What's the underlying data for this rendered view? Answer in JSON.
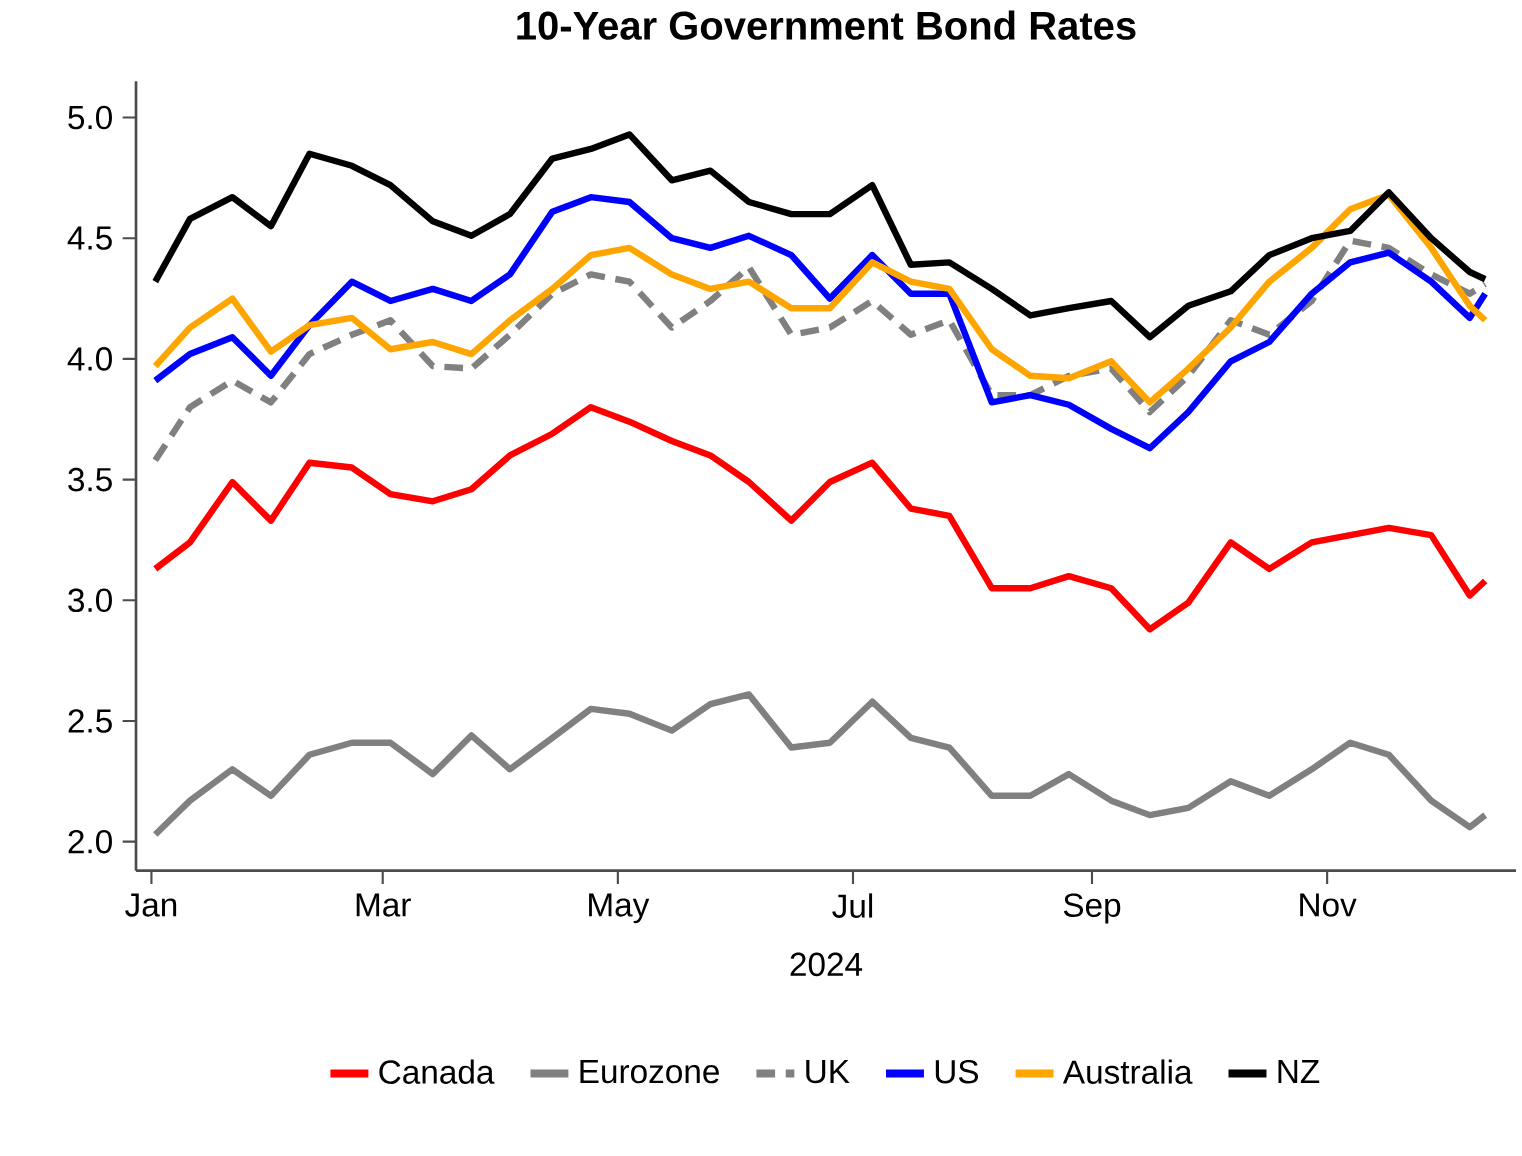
{
  "chart_data": {
    "type": "line",
    "title": "10-Year Government Bond Rates",
    "xlabel": "2024",
    "x": [
      "2024-01-02",
      "2024-01-11",
      "2024-01-22",
      "2024-02-01",
      "2024-02-11",
      "2024-02-22",
      "2024-03-03",
      "2024-03-14",
      "2024-03-24",
      "2024-04-03",
      "2024-04-14",
      "2024-04-24",
      "2024-05-04",
      "2024-05-15",
      "2024-05-25",
      "2024-06-04",
      "2024-06-15",
      "2024-06-25",
      "2024-07-06",
      "2024-07-16",
      "2024-07-26",
      "2024-08-06",
      "2024-08-16",
      "2024-08-26",
      "2024-09-06",
      "2024-09-16",
      "2024-09-26",
      "2024-10-07",
      "2024-10-17",
      "2024-10-28",
      "2024-11-07",
      "2024-11-17",
      "2024-11-28",
      "2024-12-08",
      "2024-12-12"
    ],
    "series": [
      {
        "name": "Canada",
        "color": "#ff0000",
        "line_style": "solid",
        "values": [
          3.13,
          3.24,
          3.49,
          3.33,
          3.57,
          3.55,
          3.44,
          3.41,
          3.46,
          3.6,
          3.69,
          3.8,
          3.74,
          3.66,
          3.6,
          3.49,
          3.33,
          3.49,
          3.57,
          3.38,
          3.35,
          3.05,
          3.05,
          3.1,
          3.05,
          2.88,
          2.99,
          3.24,
          3.13,
          3.24,
          3.27,
          3.3,
          3.27,
          3.02,
          3.08
        ]
      },
      {
        "name": "Eurozone",
        "color": "#808080",
        "line_style": "solid",
        "values": [
          2.03,
          2.17,
          2.3,
          2.19,
          2.36,
          2.41,
          2.41,
          2.28,
          2.44,
          2.3,
          2.43,
          2.55,
          2.53,
          2.46,
          2.57,
          2.61,
          2.39,
          2.41,
          2.58,
          2.43,
          2.39,
          2.19,
          2.19,
          2.28,
          2.17,
          2.11,
          2.14,
          2.25,
          2.19,
          2.3,
          2.41,
          2.36,
          2.17,
          2.06,
          2.11
        ]
      },
      {
        "name": "UK",
        "color": "#808080",
        "line_style": "dashed",
        "values": [
          3.58,
          3.8,
          3.91,
          3.82,
          4.02,
          4.1,
          4.16,
          3.97,
          3.96,
          4.1,
          4.27,
          4.35,
          4.32,
          4.13,
          4.24,
          4.38,
          4.1,
          4.13,
          4.24,
          4.1,
          4.16,
          3.85,
          3.85,
          3.93,
          3.96,
          3.78,
          3.93,
          4.16,
          4.1,
          4.24,
          4.49,
          4.46,
          4.35,
          4.27,
          4.31
        ]
      },
      {
        "name": "US",
        "color": "#0000ff",
        "line_style": "solid",
        "values": [
          3.91,
          4.02,
          4.09,
          3.93,
          4.14,
          4.32,
          4.24,
          4.29,
          4.24,
          4.35,
          4.61,
          4.67,
          4.65,
          4.5,
          4.46,
          4.51,
          4.43,
          4.25,
          4.43,
          4.27,
          4.27,
          3.82,
          3.85,
          3.81,
          3.71,
          3.63,
          3.78,
          3.99,
          4.07,
          4.27,
          4.4,
          4.44,
          4.32,
          4.17,
          4.27
        ]
      },
      {
        "name": "Australia",
        "color": "#ffa500",
        "line_style": "solid",
        "values": [
          3.97,
          4.13,
          4.25,
          4.03,
          4.14,
          4.17,
          4.04,
          4.07,
          4.02,
          4.16,
          4.29,
          4.43,
          4.46,
          4.35,
          4.29,
          4.32,
          4.21,
          4.21,
          4.4,
          4.32,
          4.29,
          4.04,
          3.93,
          3.92,
          3.99,
          3.82,
          3.96,
          4.13,
          4.32,
          4.46,
          4.62,
          4.68,
          4.46,
          4.22,
          4.16
        ]
      },
      {
        "name": "NZ",
        "color": "#000000",
        "line_style": "solid",
        "values": [
          4.32,
          4.58,
          4.67,
          4.55,
          4.85,
          4.8,
          4.72,
          4.57,
          4.51,
          4.6,
          4.83,
          4.87,
          4.93,
          4.74,
          4.78,
          4.65,
          4.6,
          4.6,
          4.72,
          4.39,
          4.4,
          4.29,
          4.18,
          4.21,
          4.24,
          4.09,
          4.22,
          4.28,
          4.43,
          4.5,
          4.53,
          4.69,
          4.5,
          4.36,
          4.33
        ]
      }
    ],
    "xlim": [
      "2023-12-28",
      "2024-12-20"
    ],
    "xticks": [
      {
        "value": "2024-01-01",
        "label": "Jan"
      },
      {
        "value": "2024-03-01",
        "label": "Mar"
      },
      {
        "value": "2024-05-01",
        "label": "May"
      },
      {
        "value": "2024-07-01",
        "label": "Jul"
      },
      {
        "value": "2024-09-01",
        "label": "Sep"
      },
      {
        "value": "2024-11-01",
        "label": "Nov"
      }
    ],
    "ylim": [
      1.88,
      5.15
    ],
    "yticks": [
      {
        "value": 2,
        "label": "2.0"
      },
      {
        "value": 2.5,
        "label": "2.5"
      },
      {
        "value": 3,
        "label": "3.0"
      },
      {
        "value": 3.5,
        "label": "3.5"
      },
      {
        "value": 4,
        "label": "4.0"
      },
      {
        "value": 4.5,
        "label": "4.5"
      },
      {
        "value": 5,
        "label": "5.0"
      }
    ],
    "grid": false,
    "legend": "bottom",
    "marker": "none"
  }
}
